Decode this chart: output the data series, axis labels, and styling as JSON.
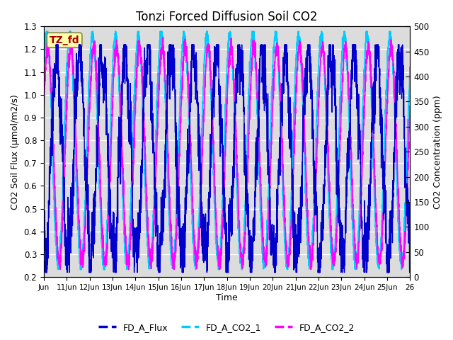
{
  "title": "Tonzi Forced Diffusion Soil CO2",
  "xlabel": "Time",
  "ylabel_left": "CO2 Soil Flux (μmol/m2/s)",
  "ylabel_right": "CO2 Concentration (ppm)",
  "ylim_left": [
    0.2,
    1.3
  ],
  "ylim_right": [
    0,
    500
  ],
  "xlim": [
    0,
    16
  ],
  "x_tick_labels": [
    "Jun",
    "11Jun",
    "12Jun",
    "13Jun",
    "14Jun",
    "15Jun",
    "16Jun",
    "17Jun",
    "18Jun",
    "19Jun",
    "20Jun",
    "21Jun",
    "22Jun",
    "23Jun",
    "24Jun",
    "25Jun",
    "26"
  ],
  "x_tick_positions": [
    0,
    1,
    2,
    3,
    4,
    5,
    6,
    7,
    8,
    9,
    10,
    11,
    12,
    13,
    14,
    15,
    16
  ],
  "color_flux": "#0000CD",
  "color_co2_1": "#00CCFF",
  "color_co2_2": "#FF00FF",
  "label_flux": "FD_A_Flux",
  "label_co2_1": "FD_A_CO2_1",
  "label_co2_2": "FD_A_CO2_2",
  "label_box_text": "TZ_fd",
  "label_box_bg": "#FFFFAA",
  "label_box_fg": "#AA0000",
  "bg_color": "#DCDCDC",
  "fig_bg": "#FFFFFF",
  "grid_color": "#FFFFFF",
  "n_points": 3200,
  "yticks_left": [
    0.2,
    0.3,
    0.4,
    0.5,
    0.6,
    0.7,
    0.8,
    0.9,
    1.0,
    1.1,
    1.2,
    1.3
  ],
  "yticks_right": [
    0,
    50,
    100,
    150,
    200,
    250,
    300,
    350,
    400,
    450,
    500
  ]
}
